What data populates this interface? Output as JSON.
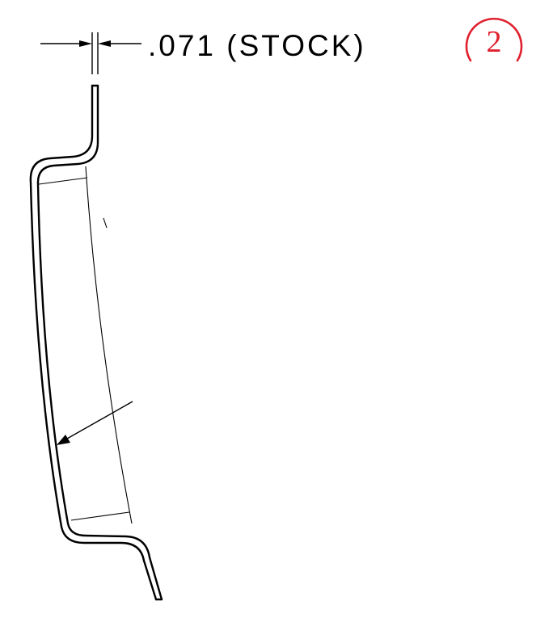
{
  "dimension": {
    "label": ".071 (STOCK)",
    "balloon": "2"
  },
  "colors": {
    "ink": "#000000",
    "balloon": "#e0202e",
    "background": "#ffffff"
  }
}
